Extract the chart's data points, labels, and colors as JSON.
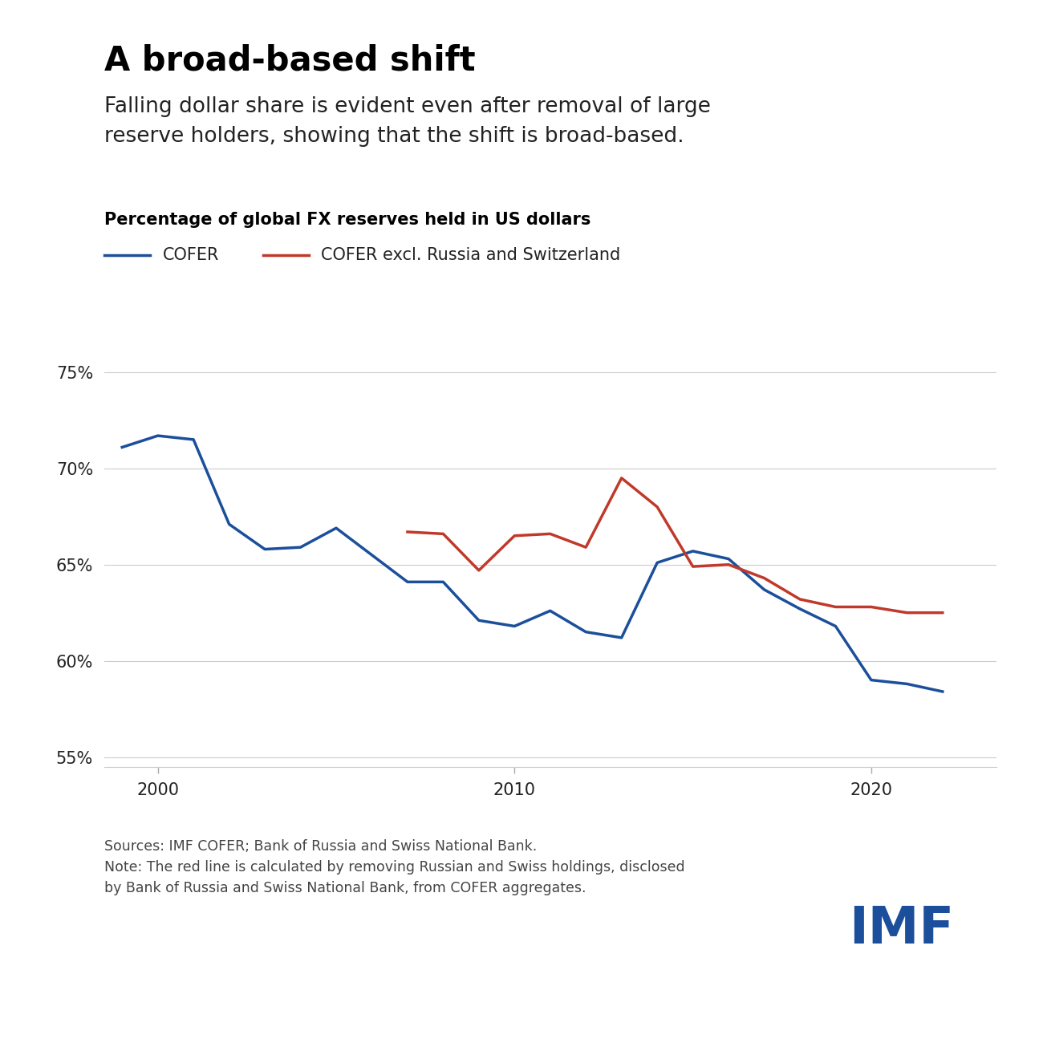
{
  "title": "A broad-based shift",
  "subtitle": "Falling dollar share is evident even after removal of large\nreserve holders, showing that the shift is broad-based.",
  "chart_label": "Percentage of global FX reserves held in US dollars",
  "source_text": "Sources: IMF COFER; Bank of Russia and Swiss National Bank.\nNote: The red line is calculated by removing Russian and Swiss holdings, disclosed\nby Bank of Russia and Swiss National Bank, from COFER aggregates.",
  "imf_logo_text": "IMF",
  "legend_blue": "COFER",
  "legend_red": "COFER excl. Russia and Switzerland",
  "blue_color": "#1B4F9B",
  "red_color": "#C0392B",
  "background_color": "#FFFFFF",
  "cofer_x": [
    1999,
    2000,
    2001,
    2002,
    2003,
    2004,
    2005,
    2006,
    2007,
    2008,
    2009,
    2010,
    2011,
    2012,
    2013,
    2014,
    2015,
    2016,
    2017,
    2018,
    2019,
    2020,
    2021,
    2022
  ],
  "cofer_y": [
    71.1,
    71.7,
    71.5,
    67.1,
    65.8,
    65.9,
    66.9,
    65.5,
    64.1,
    64.1,
    62.1,
    61.8,
    62.6,
    61.5,
    61.2,
    65.1,
    65.7,
    65.3,
    63.7,
    62.7,
    61.8,
    59.0,
    58.8,
    58.4
  ],
  "cofer_excl_x": [
    2007,
    2008,
    2009,
    2010,
    2011,
    2012,
    2013,
    2014,
    2015,
    2016,
    2017,
    2018,
    2019,
    2020,
    2021,
    2022
  ],
  "cofer_excl_y": [
    66.7,
    66.6,
    64.7,
    66.5,
    66.6,
    65.9,
    69.5,
    68.0,
    64.9,
    65.0,
    64.3,
    63.2,
    62.8,
    62.8,
    62.5,
    62.5
  ],
  "ylim": [
    54.5,
    77
  ],
  "yticks": [
    55,
    60,
    65,
    70,
    75
  ],
  "xticks": [
    2000,
    2010,
    2020
  ],
  "xlim_left": 1998.5,
  "xlim_right": 2023.5,
  "line_width": 2.5,
  "grid_color": "#CCCCCC",
  "tick_color": "#AAAAAA"
}
